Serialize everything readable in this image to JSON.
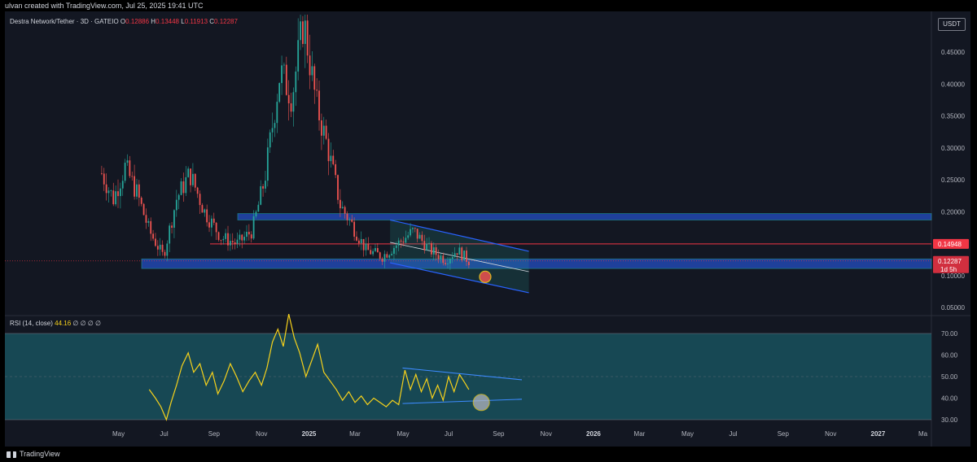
{
  "header": {
    "created_text": "ulvan created with TradingView.com, Jul 25, 2025 19:41 UTC"
  },
  "legend": {
    "symbol": "Destra Network/Tether · 3D · GATEIO",
    "open_label": "O",
    "open": "0.12886",
    "high_label": "H",
    "high": "0.13448",
    "low_label": "L",
    "low": "0.11913",
    "close_label": "C",
    "close": "0.12287"
  },
  "unit_label": "USDT",
  "rsi_legend": {
    "label": "RSI (14, close)",
    "value": "44.16",
    "extra": "∅ ∅ ∅ ∅"
  },
  "footer": {
    "brand": "TradingView"
  },
  "colors": {
    "up": "#26a69a",
    "down": "#ef5350",
    "zone_fill": "#2962ff",
    "zone_border": "#26c6da",
    "channel_line": "#2962ff",
    "resistance_line": "#f23645",
    "rsi_line": "#f7d21b",
    "rsi_band": "#1a5a66",
    "rsi_trend": "#2962ff"
  },
  "chart_data": [
    {
      "type": "candlestick",
      "title": "",
      "y_axis_ticks": [
        "0.45000",
        "0.40000",
        "0.35000",
        "0.30000",
        "0.25000",
        "0.20000",
        "0.15000",
        "0.10000",
        "0.05000"
      ],
      "x_axis_ticks": [
        "May",
        "Jul",
        "Sep",
        "Nov",
        "2025",
        "Mar",
        "May",
        "Jul",
        "Sep",
        "Nov",
        "2026",
        "Mar",
        "May",
        "Jul",
        "Sep",
        "Nov",
        "2027",
        "Ma"
      ],
      "ylim": [
        0.03,
        0.5
      ],
      "price_labels": {
        "resistance": "0.14948",
        "current": "0.12287",
        "countdown": "1d 5h"
      },
      "levels": {
        "resistance": 0.14948,
        "current": 0.12287
      },
      "zones": [
        {
          "name": "upper-zone",
          "top": 0.197,
          "bottom": 0.187
        },
        {
          "name": "lower-zone",
          "top": 0.126,
          "bottom": 0.111
        }
      ],
      "channel": {
        "upper": [
          [
            "2025-04-15",
            0.187
          ],
          [
            "2025-10-10",
            0.138
          ]
        ],
        "middle": [
          [
            "2025-04-15",
            0.152
          ],
          [
            "2025-10-10",
            0.106
          ]
        ],
        "lower": [
          [
            "2025-04-15",
            0.12
          ],
          [
            "2025-10-10",
            0.073
          ]
        ]
      },
      "highlight_point": {
        "date": "2025-08-15",
        "value": 0.098
      },
      "candles_anchor_path": [
        [
          "2024-04-10",
          0.26
        ],
        [
          "2024-04-25",
          0.22
        ],
        [
          "2024-05-10",
          0.27
        ],
        [
          "2024-05-25",
          0.23
        ],
        [
          "2024-06-10",
          0.17
        ],
        [
          "2024-06-28",
          0.13
        ],
        [
          "2024-07-15",
          0.22
        ],
        [
          "2024-08-01",
          0.26
        ],
        [
          "2024-08-20",
          0.2
        ],
        [
          "2024-09-10",
          0.16
        ],
        [
          "2024-10-01",
          0.15
        ],
        [
          "2024-10-20",
          0.17
        ],
        [
          "2024-11-05",
          0.25
        ],
        [
          "2024-11-25",
          0.42
        ],
        [
          "2024-12-10",
          0.38
        ],
        [
          "2024-12-25",
          0.5
        ],
        [
          "2025-01-10",
          0.37
        ],
        [
          "2025-01-25",
          0.3
        ],
        [
          "2025-02-10",
          0.21
        ],
        [
          "2025-02-25",
          0.18
        ],
        [
          "2025-03-15",
          0.14
        ],
        [
          "2025-04-05",
          0.13
        ],
        [
          "2025-04-25",
          0.15
        ],
        [
          "2025-05-15",
          0.17
        ],
        [
          "2025-06-05",
          0.14
        ],
        [
          "2025-06-25",
          0.125
        ],
        [
          "2025-07-10",
          0.14
        ],
        [
          "2025-07-25",
          0.123
        ]
      ]
    },
    {
      "type": "line",
      "title": "",
      "y_axis_ticks": [
        "70.00",
        "60.00",
        "50.00",
        "40.00",
        "30.00"
      ],
      "ylim": [
        28,
        82
      ],
      "band": [
        30,
        70
      ],
      "midline": 50,
      "series": [
        {
          "values": [
            [
              "2024-06-10",
              44
            ],
            [
              "2024-06-18",
              40
            ],
            [
              "2024-06-25",
              36
            ],
            [
              "2024-07-02",
              30
            ],
            [
              "2024-07-08",
              38
            ],
            [
              "2024-07-15",
              46
            ],
            [
              "2024-07-22",
              55
            ],
            [
              "2024-07-30",
              61
            ],
            [
              "2024-08-06",
              52
            ],
            [
              "2024-08-14",
              56
            ],
            [
              "2024-08-22",
              46
            ],
            [
              "2024-08-30",
              52
            ],
            [
              "2024-09-06",
              42
            ],
            [
              "2024-09-14",
              48
            ],
            [
              "2024-09-22",
              56
            ],
            [
              "2024-09-30",
              50
            ],
            [
              "2024-10-08",
              43
            ],
            [
              "2024-10-16",
              48
            ],
            [
              "2024-10-24",
              52
            ],
            [
              "2024-11-01",
              46
            ],
            [
              "2024-11-08",
              54
            ],
            [
              "2024-11-15",
              66
            ],
            [
              "2024-11-22",
              72
            ],
            [
              "2024-11-29",
              64
            ],
            [
              "2024-12-06",
              79
            ],
            [
              "2024-12-13",
              68
            ],
            [
              "2024-12-20",
              61
            ],
            [
              "2024-12-28",
              50
            ],
            [
              "2025-01-05",
              58
            ],
            [
              "2025-01-12",
              65
            ],
            [
              "2025-01-20",
              52
            ],
            [
              "2025-01-28",
              48
            ],
            [
              "2025-02-05",
              44
            ],
            [
              "2025-02-13",
              39
            ],
            [
              "2025-02-21",
              43
            ],
            [
              "2025-03-01",
              38
            ],
            [
              "2025-03-09",
              41
            ],
            [
              "2025-03-17",
              37
            ],
            [
              "2025-03-25",
              40
            ],
            [
              "2025-04-02",
              38
            ],
            [
              "2025-04-10",
              36
            ],
            [
              "2025-04-18",
              39
            ],
            [
              "2025-04-26",
              37
            ],
            [
              "2025-05-04",
              53
            ],
            [
              "2025-05-11",
              44
            ],
            [
              "2025-05-18",
              51
            ],
            [
              "2025-05-25",
              43
            ],
            [
              "2025-06-01",
              49
            ],
            [
              "2025-06-08",
              40
            ],
            [
              "2025-06-15",
              46
            ],
            [
              "2025-06-22",
              39
            ],
            [
              "2025-06-29",
              50
            ],
            [
              "2025-07-06",
              43
            ],
            [
              "2025-07-13",
              51
            ],
            [
              "2025-07-20",
              47
            ],
            [
              "2025-07-25",
              44
            ]
          ]
        }
      ],
      "trendlines": {
        "upper": [
          [
            "2025-05-01",
            54
          ],
          [
            "2025-10-01",
            48.5
          ]
        ],
        "lower": [
          [
            "2025-05-01",
            37.5
          ],
          [
            "2025-10-01",
            39.5
          ]
        ]
      },
      "highlight_point": {
        "date": "2025-08-10",
        "value": 38
      }
    }
  ]
}
